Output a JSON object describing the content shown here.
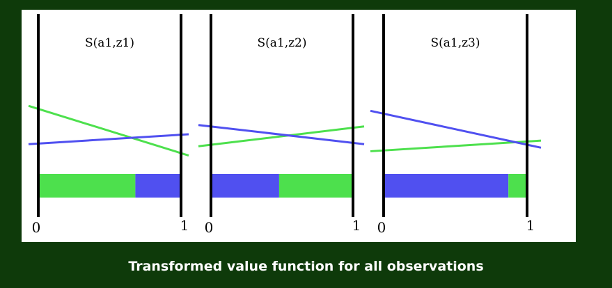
{
  "caption": "Transformed value function for all observations",
  "colors": {
    "background": "#0e3a0a",
    "panel": "#ffffff",
    "green": "#4de04d",
    "blue": "#5050f0",
    "axis": "#000000"
  },
  "diagrams": [
    {
      "title": "S(a1,z1)",
      "tick_left": "0",
      "tick_right": "1",
      "green_line": [
        0.92,
        0.22
      ],
      "blue_line": [
        0.38,
        0.52
      ],
      "bar": [
        {
          "color": "green",
          "from": 0.0,
          "to": 0.68
        },
        {
          "color": "blue",
          "from": 0.68,
          "to": 1.0
        }
      ]
    },
    {
      "title": "S(a1,z2)",
      "tick_left": "0",
      "tick_right": "1",
      "green_line": [
        0.35,
        0.63
      ],
      "blue_line": [
        0.65,
        0.38
      ],
      "bar": [
        {
          "color": "blue",
          "from": 0.0,
          "to": 0.48
        },
        {
          "color": "green",
          "from": 0.48,
          "to": 1.0
        }
      ]
    },
    {
      "title": "S(a1,z3)",
      "tick_left": "0",
      "tick_right": "1",
      "green_line": [
        0.28,
        0.43
      ],
      "blue_line": [
        0.85,
        0.33
      ],
      "bar": [
        {
          "color": "blue",
          "from": 0.0,
          "to": 0.87
        },
        {
          "color": "green",
          "from": 0.87,
          "to": 1.0
        }
      ]
    }
  ]
}
